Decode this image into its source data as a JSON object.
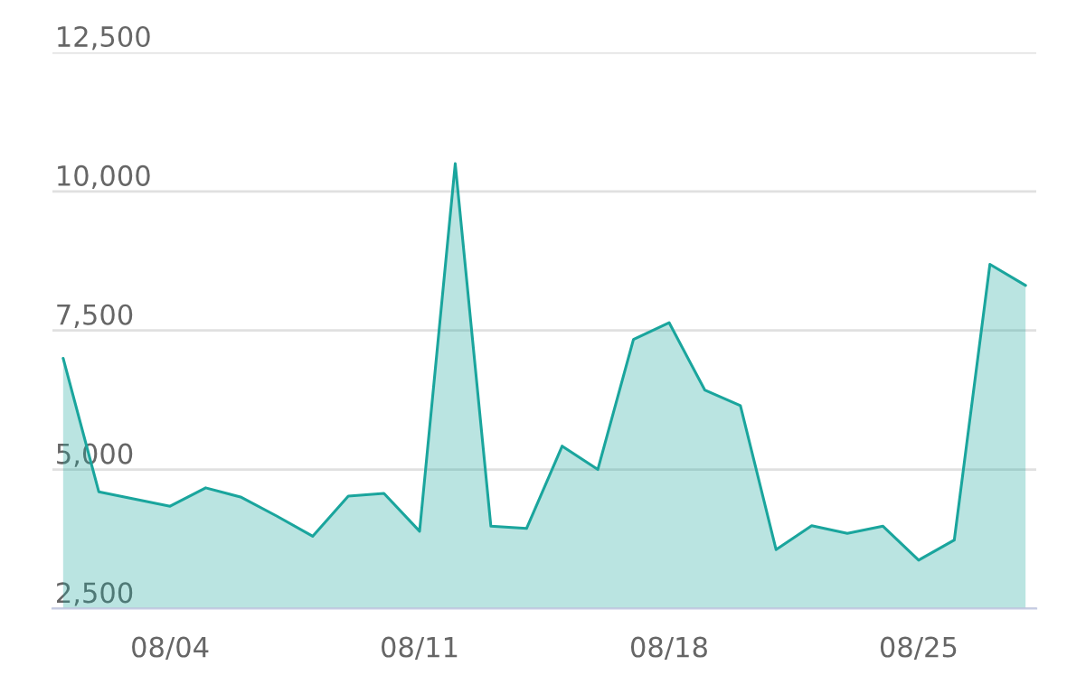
{
  "chart_data": {
    "type": "area",
    "categories": [
      null,
      null,
      null,
      "08/04",
      null,
      null,
      null,
      null,
      null,
      null,
      "08/11",
      null,
      null,
      null,
      null,
      null,
      null,
      "08/18",
      null,
      null,
      null,
      null,
      null,
      null,
      "08/25",
      null,
      null,
      null
    ],
    "series": [
      {
        "color": "#1aa59d",
        "values": [
          7000,
          4600,
          4470,
          4340,
          4670,
          4500,
          4160,
          3800,
          4520,
          4570,
          3890,
          10500,
          3980,
          3940,
          5420,
          5000,
          7340,
          7640,
          6430,
          6150,
          3560,
          3990,
          3850,
          3980,
          3370,
          3730,
          8690,
          8310
        ]
      }
    ],
    "ylim": [
      2500,
      12500
    ],
    "yticks": [
      {
        "value": 2500,
        "label": "2,500"
      },
      {
        "value": 5000,
        "label": "5,000"
      },
      {
        "value": 7500,
        "label": "7,500"
      },
      {
        "value": 10000,
        "label": "10,000"
      },
      {
        "value": 12500,
        "label": "12,500"
      }
    ],
    "grid": "y",
    "marker": "none",
    "line_style": "solid",
    "legend": false
  }
}
